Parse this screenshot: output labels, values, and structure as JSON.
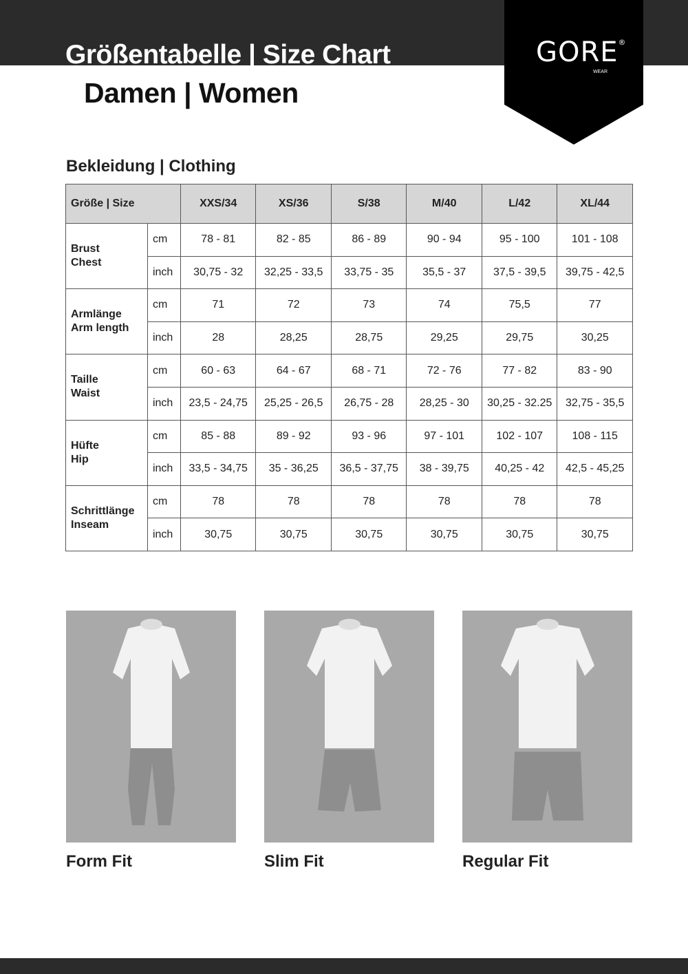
{
  "header": {
    "title": "Größentabelle | Size Chart",
    "subtitle": "Damen | Women",
    "logo": "GORE® WEAR"
  },
  "section": "Bekleidung | Clothing",
  "table": {
    "size_label": "Größe | Size",
    "sizes": [
      "XXS/34",
      "XS/36",
      "S/38",
      "M/40",
      "L/42",
      "XL/44"
    ],
    "measures": [
      {
        "de": "Brust",
        "en": "Chest",
        "cm": [
          "78 - 81",
          "82 - 85",
          "86 - 89",
          "90 - 94",
          "95 - 100",
          "101 - 108"
        ],
        "inch": [
          "30,75 - 32",
          "32,25 - 33,5",
          "33,75 - 35",
          "35,5 - 37",
          "37,5 - 39,5",
          "39,75 - 42,5"
        ]
      },
      {
        "de": "Armlänge",
        "en": "Arm length",
        "cm": [
          "71",
          "72",
          "73",
          "74",
          "75,5",
          "77"
        ],
        "inch": [
          "28",
          "28,25",
          "28,75",
          "29,25",
          "29,75",
          "30,25"
        ]
      },
      {
        "de": "Taille",
        "en": "Waist",
        "cm": [
          "60 - 63",
          "64 - 67",
          "68 - 71",
          "72 - 76",
          "77 - 82",
          "83 - 90"
        ],
        "inch": [
          "23,5 - 24,75",
          "25,25 - 26,5",
          "26,75 - 28",
          "28,25 - 30",
          "30,25 - 32.25",
          "32,75 - 35,5"
        ]
      },
      {
        "de": "Hüfte",
        "en": "Hip",
        "cm": [
          "85 - 88",
          "89 - 92",
          "93 - 96",
          "97 - 101",
          "102 - 107",
          "108 - 115"
        ],
        "inch": [
          "33,5 - 34,75",
          "35 - 36,25",
          "36,5 - 37,75",
          "38 - 39,75",
          "40,25 - 42",
          "42,5 - 45,25"
        ]
      },
      {
        "de": "Schrittlänge",
        "en": "Inseam",
        "cm": [
          "78",
          "78",
          "78",
          "78",
          "78",
          "78"
        ],
        "inch": [
          "30,75",
          "30,75",
          "30,75",
          "30,75",
          "30,75",
          "30,75"
        ]
      }
    ],
    "unit_cm": "cm",
    "unit_inch": "inch"
  },
  "fits": [
    {
      "label": "Form Fit"
    },
    {
      "label": "Slim Fit"
    },
    {
      "label": "Regular Fit"
    }
  ]
}
